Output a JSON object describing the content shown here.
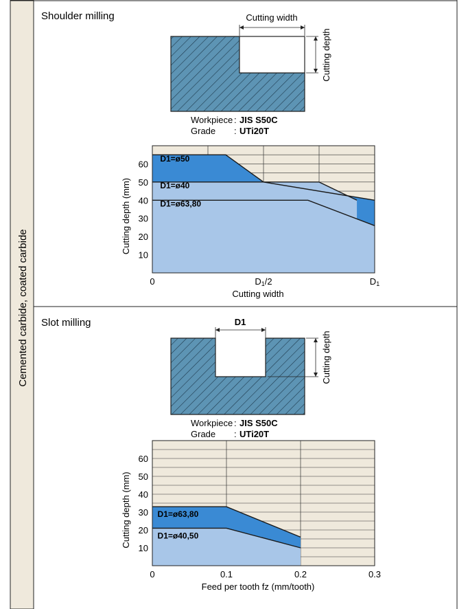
{
  "side_label": "Cemented carbide, coated carbide",
  "colors": {
    "background_grid": "#efe9dc",
    "workpiece_hatch": "#5d94b4",
    "region_dark": "#3a8ad4",
    "region_light": "#a8c6e8",
    "side_bar": "#efe9dc"
  },
  "shoulder": {
    "title": "Shoulder milling",
    "diagram": {
      "cutting_width_label": "Cutting width",
      "cutting_depth_label": "Cutting depth"
    },
    "workpiece_label": "Workpiece",
    "workpiece_value": "JIS S50C",
    "grade_label": "Grade",
    "grade_value": "UTi20T"
  },
  "slot": {
    "title": "Slot milling",
    "diagram": {
      "d1_label": "D1",
      "cutting_depth_label": "Cutting depth"
    },
    "workpiece_label": "Workpiece",
    "workpiece_value": "JIS S50C",
    "grade_label": "Grade",
    "grade_value": "UTi20T"
  },
  "chart_data": [
    {
      "type": "area",
      "xlabel": "Cutting width",
      "ylabel": "Cutting depth (mm)",
      "x_ticks": [
        "0",
        "D1/2",
        "D1"
      ],
      "x_tick_values": [
        0,
        0.5,
        1.0
      ],
      "y_ticks": [
        10,
        20,
        30,
        40,
        50,
        60
      ],
      "xlim": [
        0,
        1.0
      ],
      "ylim": [
        0,
        70
      ],
      "series": [
        {
          "name": "D1=ø50",
          "x": [
            0,
            0.33,
            0.5,
            1.0
          ],
          "y": [
            65,
            65,
            50,
            40
          ],
          "fill": "dark"
        },
        {
          "name": "D1=ø40",
          "x": [
            0,
            0.75,
            0.92
          ],
          "y": [
            50,
            50,
            40
          ],
          "fill": "light"
        },
        {
          "name": "D1=ø63,80",
          "x": [
            0,
            0.7,
            1.0
          ],
          "y": [
            40,
            40,
            26
          ],
          "fill": "light"
        }
      ]
    },
    {
      "type": "area",
      "xlabel": "Feed per tooth fz (mm/tooth)",
      "ylabel": "Cutting depth (mm)",
      "x_ticks": [
        "0",
        "0.1",
        "0.2",
        "0.3"
      ],
      "x_tick_values": [
        0,
        0.1,
        0.2,
        0.3
      ],
      "y_ticks": [
        10,
        20,
        30,
        40,
        50,
        60
      ],
      "xlim": [
        0,
        0.3
      ],
      "ylim": [
        0,
        70
      ],
      "series": [
        {
          "name": "D1=ø63,80",
          "x": [
            0,
            0.1,
            0.2
          ],
          "y": [
            33,
            33,
            16
          ],
          "fill": "dark"
        },
        {
          "name": "D1=ø40,50",
          "x": [
            0,
            0.1,
            0.2
          ],
          "y": [
            21,
            21,
            10
          ],
          "fill": "light"
        }
      ]
    }
  ]
}
